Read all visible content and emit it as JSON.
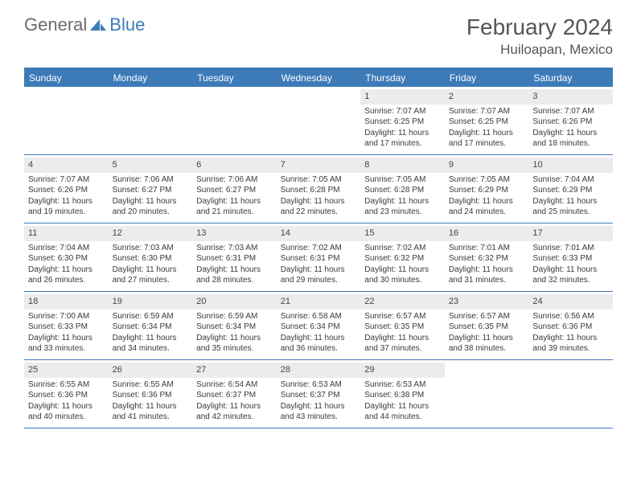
{
  "logo": {
    "part1": "General",
    "part2": "Blue"
  },
  "title": "February 2024",
  "location": "Huiloapan, Mexico",
  "dayNames": [
    "Sunday",
    "Monday",
    "Tuesday",
    "Wednesday",
    "Thursday",
    "Friday",
    "Saturday"
  ],
  "colors": {
    "accent": "#3d7ab8",
    "dayShade": "#ececec",
    "text": "#3a3a3a",
    "titleText": "#555555",
    "logoGrey": "#6b6b6b"
  },
  "typography": {
    "title_fontsize": 28,
    "location_fontsize": 17,
    "dayhead_fontsize": 12,
    "cell_fontsize": 10,
    "daynum_fontsize": 11
  },
  "labels": {
    "sunrise": "Sunrise:",
    "sunset": "Sunset:",
    "daylight": "Daylight:"
  },
  "startOffset": 4,
  "days": [
    {
      "n": 1,
      "sunrise": "7:07 AM",
      "sunset": "6:25 PM",
      "daylight": "11 hours and 17 minutes."
    },
    {
      "n": 2,
      "sunrise": "7:07 AM",
      "sunset": "6:25 PM",
      "daylight": "11 hours and 17 minutes."
    },
    {
      "n": 3,
      "sunrise": "7:07 AM",
      "sunset": "6:26 PM",
      "daylight": "11 hours and 18 minutes."
    },
    {
      "n": 4,
      "sunrise": "7:07 AM",
      "sunset": "6:26 PM",
      "daylight": "11 hours and 19 minutes."
    },
    {
      "n": 5,
      "sunrise": "7:06 AM",
      "sunset": "6:27 PM",
      "daylight": "11 hours and 20 minutes."
    },
    {
      "n": 6,
      "sunrise": "7:06 AM",
      "sunset": "6:27 PM",
      "daylight": "11 hours and 21 minutes."
    },
    {
      "n": 7,
      "sunrise": "7:05 AM",
      "sunset": "6:28 PM",
      "daylight": "11 hours and 22 minutes."
    },
    {
      "n": 8,
      "sunrise": "7:05 AM",
      "sunset": "6:28 PM",
      "daylight": "11 hours and 23 minutes."
    },
    {
      "n": 9,
      "sunrise": "7:05 AM",
      "sunset": "6:29 PM",
      "daylight": "11 hours and 24 minutes."
    },
    {
      "n": 10,
      "sunrise": "7:04 AM",
      "sunset": "6:29 PM",
      "daylight": "11 hours and 25 minutes."
    },
    {
      "n": 11,
      "sunrise": "7:04 AM",
      "sunset": "6:30 PM",
      "daylight": "11 hours and 26 minutes."
    },
    {
      "n": 12,
      "sunrise": "7:03 AM",
      "sunset": "6:30 PM",
      "daylight": "11 hours and 27 minutes."
    },
    {
      "n": 13,
      "sunrise": "7:03 AM",
      "sunset": "6:31 PM",
      "daylight": "11 hours and 28 minutes."
    },
    {
      "n": 14,
      "sunrise": "7:02 AM",
      "sunset": "6:31 PM",
      "daylight": "11 hours and 29 minutes."
    },
    {
      "n": 15,
      "sunrise": "7:02 AM",
      "sunset": "6:32 PM",
      "daylight": "11 hours and 30 minutes."
    },
    {
      "n": 16,
      "sunrise": "7:01 AM",
      "sunset": "6:32 PM",
      "daylight": "11 hours and 31 minutes."
    },
    {
      "n": 17,
      "sunrise": "7:01 AM",
      "sunset": "6:33 PM",
      "daylight": "11 hours and 32 minutes."
    },
    {
      "n": 18,
      "sunrise": "7:00 AM",
      "sunset": "6:33 PM",
      "daylight": "11 hours and 33 minutes."
    },
    {
      "n": 19,
      "sunrise": "6:59 AM",
      "sunset": "6:34 PM",
      "daylight": "11 hours and 34 minutes."
    },
    {
      "n": 20,
      "sunrise": "6:59 AM",
      "sunset": "6:34 PM",
      "daylight": "11 hours and 35 minutes."
    },
    {
      "n": 21,
      "sunrise": "6:58 AM",
      "sunset": "6:34 PM",
      "daylight": "11 hours and 36 minutes."
    },
    {
      "n": 22,
      "sunrise": "6:57 AM",
      "sunset": "6:35 PM",
      "daylight": "11 hours and 37 minutes."
    },
    {
      "n": 23,
      "sunrise": "6:57 AM",
      "sunset": "6:35 PM",
      "daylight": "11 hours and 38 minutes."
    },
    {
      "n": 24,
      "sunrise": "6:56 AM",
      "sunset": "6:36 PM",
      "daylight": "11 hours and 39 minutes."
    },
    {
      "n": 25,
      "sunrise": "6:55 AM",
      "sunset": "6:36 PM",
      "daylight": "11 hours and 40 minutes."
    },
    {
      "n": 26,
      "sunrise": "6:55 AM",
      "sunset": "6:36 PM",
      "daylight": "11 hours and 41 minutes."
    },
    {
      "n": 27,
      "sunrise": "6:54 AM",
      "sunset": "6:37 PM",
      "daylight": "11 hours and 42 minutes."
    },
    {
      "n": 28,
      "sunrise": "6:53 AM",
      "sunset": "6:37 PM",
      "daylight": "11 hours and 43 minutes."
    },
    {
      "n": 29,
      "sunrise": "6:53 AM",
      "sunset": "6:38 PM",
      "daylight": "11 hours and 44 minutes."
    }
  ]
}
